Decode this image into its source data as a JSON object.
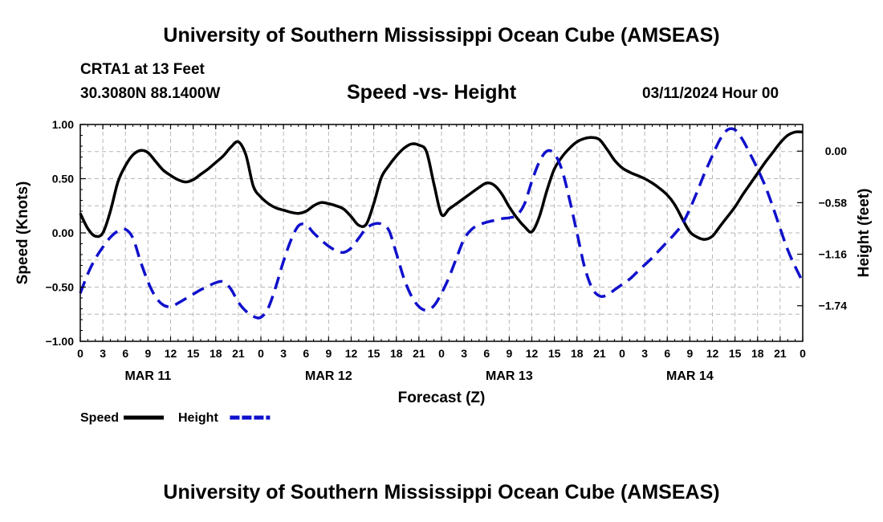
{
  "page_title": "University of Southern Mississippi Ocean Cube (AMSEAS)",
  "footer_title": "University of Southern Mississippi Ocean Cube (AMSEAS)",
  "station": "CRTA1 at 13 Feet",
  "coordinates": "30.3080N  88.1400W",
  "datetime": "03/11/2024 Hour 00",
  "chart_data": {
    "type": "line",
    "title": "Speed -vs- Height",
    "xlabel": "Forecast (Z)",
    "ylabel": "Speed (Knots)",
    "y2label": "Height (feet)",
    "xlim": [
      0,
      96
    ],
    "ylim": [
      -1.0,
      1.0
    ],
    "y2lim": [
      -2.14,
      0.3
    ],
    "x_ticks": [
      0,
      3,
      6,
      9,
      12,
      15,
      18,
      21,
      24,
      27,
      30,
      33,
      36,
      39,
      42,
      45,
      48,
      51,
      54,
      57,
      60,
      63,
      66,
      69,
      72,
      75,
      78,
      81,
      84,
      87,
      90,
      93,
      96
    ],
    "x_tick_labels": [
      "0",
      "3",
      "6",
      "9",
      "12",
      "15",
      "18",
      "21",
      "0",
      "3",
      "6",
      "9",
      "12",
      "15",
      "18",
      "21",
      "0",
      "3",
      "6",
      "9",
      "12",
      "15",
      "18",
      "21",
      "0",
      "3",
      "6",
      "9",
      "12",
      "15",
      "18",
      "21",
      "0"
    ],
    "date_labels": [
      {
        "x": 9,
        "label": "MAR 11"
      },
      {
        "x": 33,
        "label": "MAR 12"
      },
      {
        "x": 57,
        "label": "MAR 13"
      },
      {
        "x": 81,
        "label": "MAR 14"
      }
    ],
    "y_ticks": [
      1.0,
      0.5,
      0.0,
      -0.5,
      -1.0
    ],
    "y_tick_labels": [
      "1.00",
      "0.50",
      "0.00",
      "−0.50",
      "−1.00"
    ],
    "y2_ticks": [
      0.0,
      -0.58,
      -1.16,
      -1.74
    ],
    "y2_tick_labels": [
      "0.00",
      "−0.58",
      "−1.16",
      "−1.74"
    ],
    "grid": true,
    "series": [
      {
        "name": "Speed",
        "axis": "left",
        "color": "#000000",
        "style": "solid",
        "x": [
          0,
          1,
          2,
          3,
          4,
          5,
          6,
          7,
          8,
          9,
          10,
          11,
          12,
          13,
          14,
          15,
          16,
          17,
          18,
          19,
          20,
          21,
          22,
          23,
          24,
          25,
          26,
          27,
          28,
          29,
          30,
          31,
          32,
          33,
          34,
          35,
          36,
          37,
          38,
          39,
          40,
          41,
          42,
          43,
          44,
          45,
          46,
          47,
          48,
          49,
          50,
          51,
          52,
          53,
          54,
          55,
          56,
          57,
          58,
          59,
          60,
          61,
          62,
          63,
          64,
          65,
          66,
          67,
          68,
          69,
          70,
          71,
          72,
          73,
          74,
          75,
          76,
          77,
          78,
          79,
          80,
          81,
          82,
          83,
          84,
          85,
          86,
          87,
          88,
          89,
          90,
          91,
          92,
          93,
          94,
          95,
          96
        ],
        "values": [
          0.18,
          0.04,
          -0.03,
          0.0,
          0.2,
          0.47,
          0.62,
          0.72,
          0.76,
          0.74,
          0.66,
          0.58,
          0.53,
          0.49,
          0.47,
          0.49,
          0.54,
          0.59,
          0.65,
          0.71,
          0.79,
          0.84,
          0.72,
          0.43,
          0.33,
          0.27,
          0.23,
          0.21,
          0.19,
          0.18,
          0.2,
          0.25,
          0.28,
          0.27,
          0.25,
          0.22,
          0.15,
          0.07,
          0.08,
          0.27,
          0.51,
          0.62,
          0.71,
          0.78,
          0.82,
          0.81,
          0.75,
          0.45,
          0.17,
          0.22,
          0.27,
          0.32,
          0.37,
          0.42,
          0.46,
          0.44,
          0.36,
          0.24,
          0.14,
          0.06,
          0.01,
          0.15,
          0.39,
          0.59,
          0.7,
          0.78,
          0.84,
          0.87,
          0.88,
          0.86,
          0.77,
          0.67,
          0.6,
          0.56,
          0.53,
          0.5,
          0.46,
          0.41,
          0.35,
          0.26,
          0.13,
          0.01,
          -0.04,
          -0.06,
          -0.03,
          0.06,
          0.15,
          0.24,
          0.35,
          0.45,
          0.55,
          0.65,
          0.74,
          0.83,
          0.9,
          0.93,
          0.93
        ]
      },
      {
        "name": "Height",
        "axis": "right",
        "color": "#1010cc",
        "style": "dashed",
        "x": [
          0,
          1,
          2,
          3,
          4,
          5,
          6,
          7,
          8,
          9,
          10,
          11,
          12,
          13,
          14,
          15,
          16,
          17,
          18,
          19,
          20,
          21,
          22,
          23,
          24,
          25,
          26,
          27,
          28,
          29,
          30,
          31,
          32,
          33,
          34,
          35,
          36,
          37,
          38,
          39,
          40,
          41,
          42,
          43,
          44,
          45,
          46,
          47,
          48,
          49,
          50,
          51,
          52,
          53,
          54,
          55,
          56,
          57,
          58,
          59,
          60,
          61,
          62,
          63,
          64,
          65,
          66,
          67,
          68,
          69,
          70,
          71,
          72,
          73,
          74,
          75,
          76,
          77,
          78,
          79,
          80,
          81,
          82,
          83,
          84,
          85,
          86,
          87,
          88,
          89,
          90,
          91,
          92,
          93,
          94,
          95,
          96
        ],
        "values": [
          -1.6,
          -1.38,
          -1.21,
          -1.08,
          -0.97,
          -0.9,
          -0.88,
          -0.98,
          -1.24,
          -1.47,
          -1.64,
          -1.73,
          -1.75,
          -1.71,
          -1.66,
          -1.61,
          -1.56,
          -1.52,
          -1.48,
          -1.47,
          -1.55,
          -1.7,
          -1.8,
          -1.86,
          -1.87,
          -1.76,
          -1.52,
          -1.24,
          -1.0,
          -0.84,
          -0.83,
          -0.92,
          -1.0,
          -1.07,
          -1.12,
          -1.14,
          -1.09,
          -0.98,
          -0.87,
          -0.82,
          -0.82,
          -0.89,
          -1.15,
          -1.43,
          -1.63,
          -1.75,
          -1.79,
          -1.74,
          -1.6,
          -1.42,
          -1.2,
          -0.99,
          -0.88,
          -0.83,
          -0.8,
          -0.78,
          -0.76,
          -0.75,
          -0.72,
          -0.6,
          -0.34,
          -0.12,
          0.0,
          -0.03,
          -0.21,
          -0.54,
          -0.92,
          -1.3,
          -1.54,
          -1.63,
          -1.62,
          -1.56,
          -1.5,
          -1.44,
          -1.36,
          -1.28,
          -1.2,
          -1.11,
          -1.02,
          -0.93,
          -0.82,
          -0.65,
          -0.45,
          -0.24,
          -0.05,
          0.13,
          0.24,
          0.24,
          0.13,
          -0.03,
          -0.2,
          -0.39,
          -0.62,
          -0.87,
          -1.11,
          -1.3,
          -1.47
        ]
      }
    ],
    "legend": {
      "position": "bottom-left",
      "entries": [
        {
          "label": "Speed",
          "color": "#000000",
          "style": "solid"
        },
        {
          "label": "Height",
          "color": "#1010cc",
          "style": "dashed"
        }
      ]
    }
  }
}
